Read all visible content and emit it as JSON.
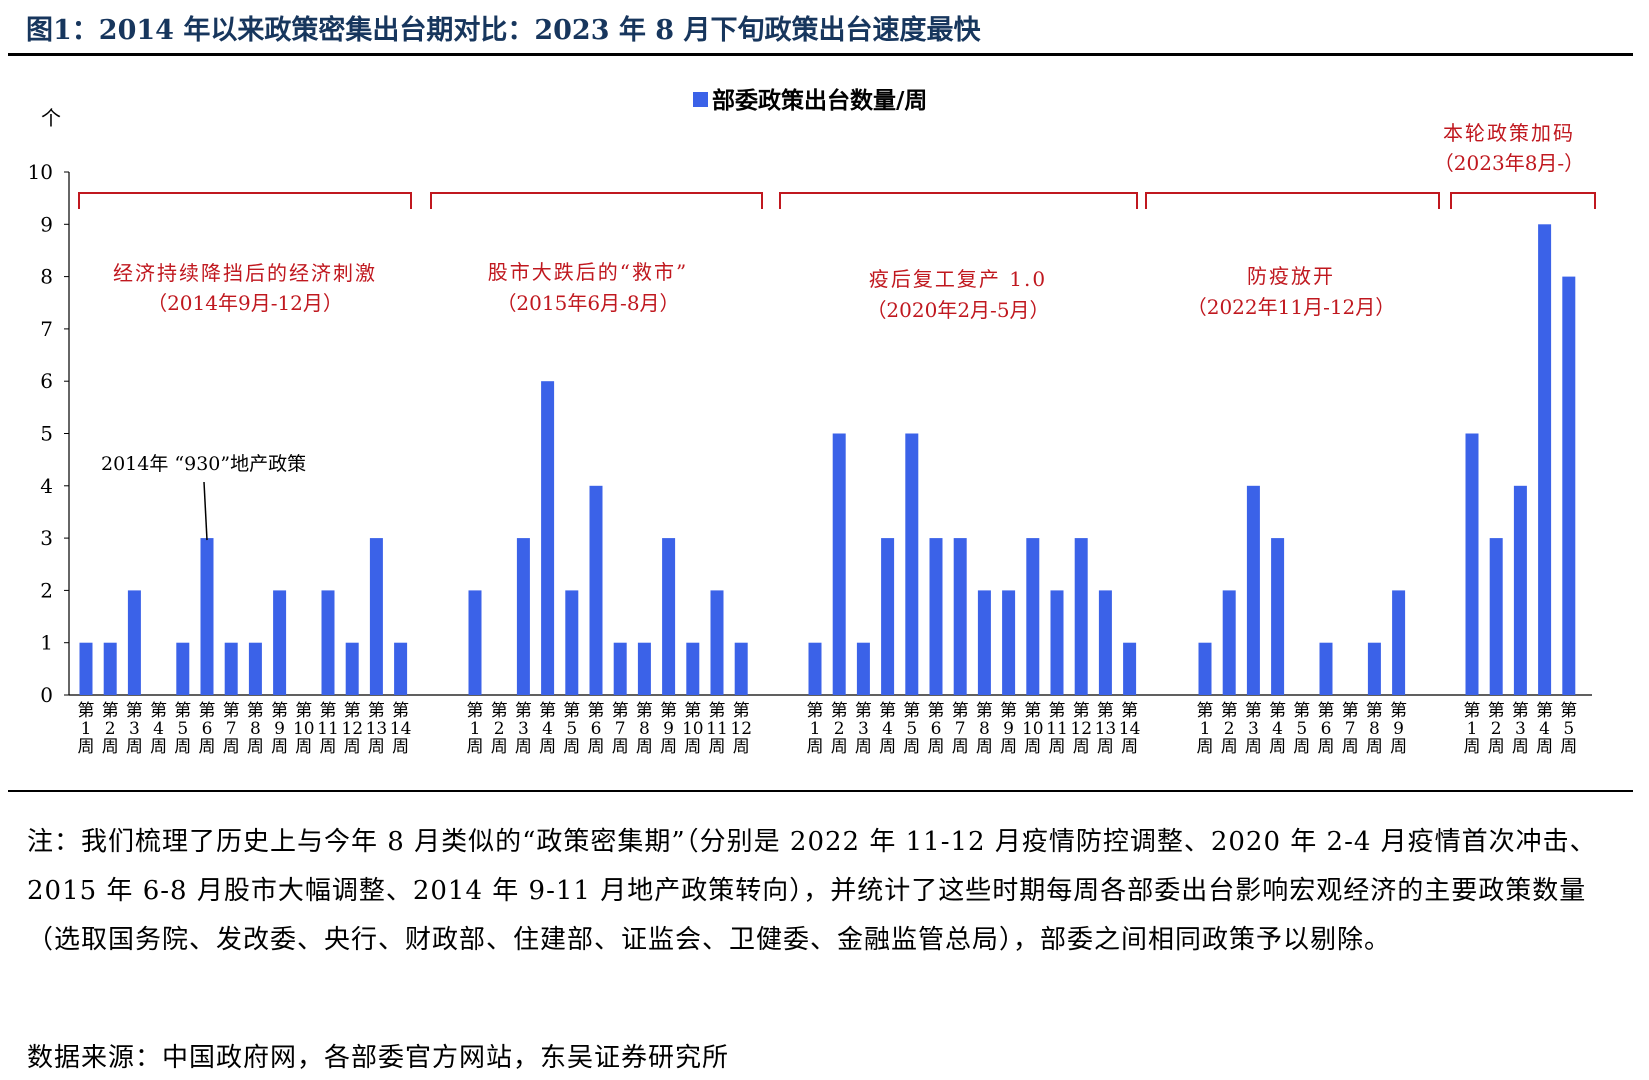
{
  "figure_title": "图1：2014 年以来政策密集出台期对比：2023 年 8 月下旬政策出台速度最快",
  "colors": {
    "bar": "#3b62e8",
    "annotation": "#c0181f",
    "title": "#17365d"
  },
  "chart_data": {
    "type": "bar",
    "legend": "部委政策出台数量/周",
    "legend_position": "top-center",
    "ylabel": "个",
    "ylim": [
      0,
      10
    ],
    "yticks": [
      0,
      1,
      2,
      3,
      4,
      5,
      6,
      7,
      8,
      9,
      10
    ],
    "grid": false,
    "groups": [
      {
        "label": "经济持续降挡后的经济刺激",
        "period": "（2014年9月-12月）",
        "categories": [
          "第1周",
          "第2周",
          "第3周",
          "第4周",
          "第5周",
          "第6周",
          "第7周",
          "第8周",
          "第9周",
          "第10周",
          "第11周",
          "第12周",
          "第13周",
          "第14周"
        ],
        "values": [
          1,
          1,
          2,
          0,
          1,
          3,
          1,
          1,
          2,
          0,
          2,
          1,
          3,
          1
        ]
      },
      {
        "label": "股市大跌后的“救市”",
        "period": "（2015年6月-8月）",
        "categories": [
          "第1周",
          "第2周",
          "第3周",
          "第4周",
          "第5周",
          "第6周",
          "第7周",
          "第8周",
          "第9周",
          "第10周",
          "第11周",
          "第12周"
        ],
        "values": [
          2,
          0,
          3,
          6,
          2,
          4,
          1,
          1,
          3,
          1,
          2,
          1
        ]
      },
      {
        "label": "疫后复工复产 1.0",
        "period": "（2020年2月-5月）",
        "categories": [
          "第1周",
          "第2周",
          "第3周",
          "第4周",
          "第5周",
          "第6周",
          "第7周",
          "第8周",
          "第9周",
          "第10周",
          "第11周",
          "第12周",
          "第13周",
          "第14周"
        ],
        "values": [
          1,
          5,
          1,
          3,
          5,
          3,
          3,
          2,
          2,
          3,
          2,
          3,
          2,
          1
        ]
      },
      {
        "label": "防疫放开",
        "period": "（2022年11月-12月）",
        "categories": [
          "第1周",
          "第2周",
          "第3周",
          "第4周",
          "第5周",
          "第6周",
          "第7周",
          "第8周",
          "第9周"
        ],
        "values": [
          1,
          2,
          4,
          3,
          0,
          1,
          0,
          1,
          2
        ]
      },
      {
        "label": "本轮政策加码",
        "period": "（2023年8月-）",
        "categories": [
          "第1周",
          "第2周",
          "第3周",
          "第4周",
          "第5周"
        ],
        "values": [
          5,
          3,
          4,
          9,
          8
        ]
      }
    ],
    "annotations": [
      {
        "text": "2014年 “930”地产政策",
        "group": 0,
        "category": "第6周"
      }
    ]
  },
  "notes": {
    "text": "注：我们梳理了历史上与今年 8 月类似的“政策密集期”（分别是 2022 年 11-12 月疫情防控调整、2020 年 2-4 月疫情首次冲击、2015 年 6-8 月股市大幅调整、2014 年 9-11 月地产政策转向），并统计了这些时期每周各部委出台影响宏观经济的主要政策数量（选取国务院、发改委、央行、财政部、住建部、证监会、卫健委、金融监管总局），部委之间相同政策予以剔除。"
  },
  "source": "数据来源：中国政府网，各部委官方网站，东吴证券研究所"
}
